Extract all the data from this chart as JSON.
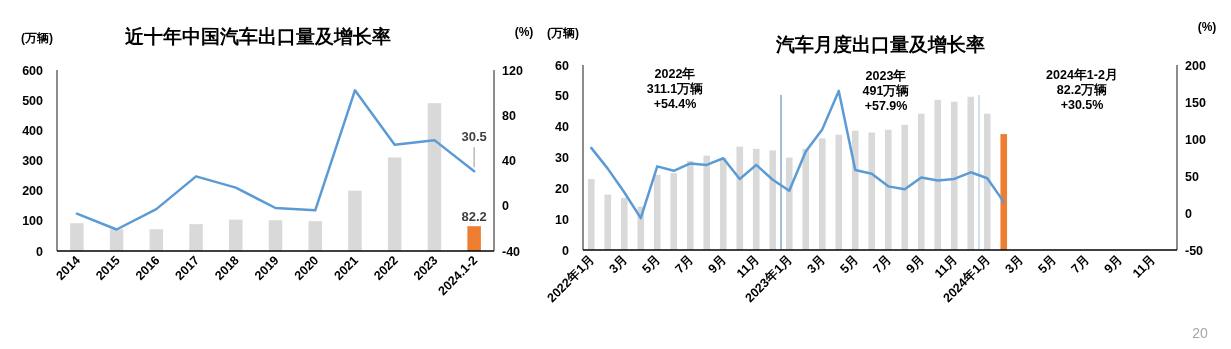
{
  "chart_data": [
    {
      "type": "bar",
      "title": "近十年中国汽车出口量及增长率",
      "ylabel": "(万辆)",
      "y2label": "(%)",
      "categories": [
        "2014",
        "2015",
        "2016",
        "2017",
        "2018",
        "2019",
        "2020",
        "2021",
        "2022",
        "2023",
        "2024.1-2"
      ],
      "ylim": [
        0,
        600
      ],
      "yticks": [
        0,
        100,
        200,
        300,
        400,
        500,
        600
      ],
      "y2lim": [
        -40,
        120
      ],
      "y2ticks": [
        -40,
        0,
        40,
        80,
        120
      ],
      "series": [
        {
          "colors": [
            "#d9d9d9",
            "#d9d9d9",
            "#d9d9d9",
            "#d9d9d9",
            "#d9d9d9",
            "#d9d9d9",
            "#d9d9d9",
            "#d9d9d9",
            "#d9d9d9",
            "#d9d9d9",
            "#ed7d31"
          ],
          "values": [
            92,
            72,
            72,
            89,
            104,
            102,
            99,
            200,
            310,
            490,
            82.2
          ],
          "value_labels": [
            null,
            null,
            null,
            null,
            null,
            null,
            null,
            null,
            null,
            null,
            "82.2"
          ]
        },
        {
          "type": "line",
          "axis": "y2",
          "color": "#5b9bd5",
          "values": [
            -7,
            -21,
            -3,
            26,
            16,
            -2,
            -4,
            102,
            54,
            58,
            30.5
          ],
          "value_labels": [
            null,
            null,
            null,
            null,
            null,
            null,
            null,
            null,
            null,
            null,
            "30.5"
          ]
        }
      ]
    },
    {
      "type": "bar",
      "title": "汽车月度出口量及增长率",
      "ylabel": "(万辆)",
      "y2label": "(%)",
      "categories": [
        "2022年1月",
        null,
        "3月",
        null,
        "5月",
        null,
        "7月",
        null,
        "9月",
        null,
        "11月",
        null,
        "2023年1月",
        null,
        "3月",
        null,
        "5月",
        null,
        "7月",
        null,
        "9月",
        null,
        "11月",
        null,
        "2024年1月",
        null,
        "3月",
        null,
        "5月",
        null,
        "7月",
        null,
        "9月",
        null,
        "11月",
        null
      ],
      "ylim": [
        0,
        60
      ],
      "yticks": [
        0,
        10,
        20,
        30,
        40,
        50,
        60
      ],
      "y2lim": [
        -50,
        200
      ],
      "y2ticks": [
        -50,
        0,
        50,
        100,
        150,
        200
      ],
      "series": [
        {
          "color": "#d9d9d9",
          "values": [
            23.0,
            18.0,
            16.9,
            14.1,
            24.4,
            24.9,
            28.9,
            30.6,
            29.8,
            33.5,
            32.8,
            32.3,
            30.0,
            32.8,
            36.2,
            37.4,
            38.7,
            38.1,
            39.0,
            40.6,
            44.2,
            48.7,
            48.1,
            49.7,
            44.2,
            null,
            null,
            null,
            null,
            null,
            null,
            null,
            null,
            null,
            null,
            null
          ]
        },
        {
          "color": "#ed7d31",
          "values": [
            null,
            null,
            null,
            null,
            null,
            null,
            null,
            null,
            null,
            null,
            null,
            null,
            null,
            null,
            null,
            null,
            null,
            null,
            null,
            null,
            null,
            null,
            null,
            null,
            null,
            37.6,
            null,
            null,
            null,
            null,
            null,
            null,
            null,
            null,
            null,
            null
          ]
        },
        {
          "type": "line",
          "axis": "y2",
          "color": "#5b9bd5",
          "values": [
            88,
            60,
            28,
            -7,
            63,
            57,
            67,
            65,
            74,
            46,
            65,
            45,
            30,
            83,
            113,
            165,
            58,
            53,
            36,
            32,
            48,
            44,
            46,
            55,
            47,
            15,
            null,
            null,
            null,
            null,
            null,
            null,
            null,
            null,
            null,
            null
          ]
        }
      ],
      "annotations": [
        "2022年\n311.1万辆\n+54.4%",
        "2023年\n491万辆\n+57.9%",
        "2024年1-2月\n82.2万辆\n+30.5%",
        "20"
      ]
    }
  ]
}
